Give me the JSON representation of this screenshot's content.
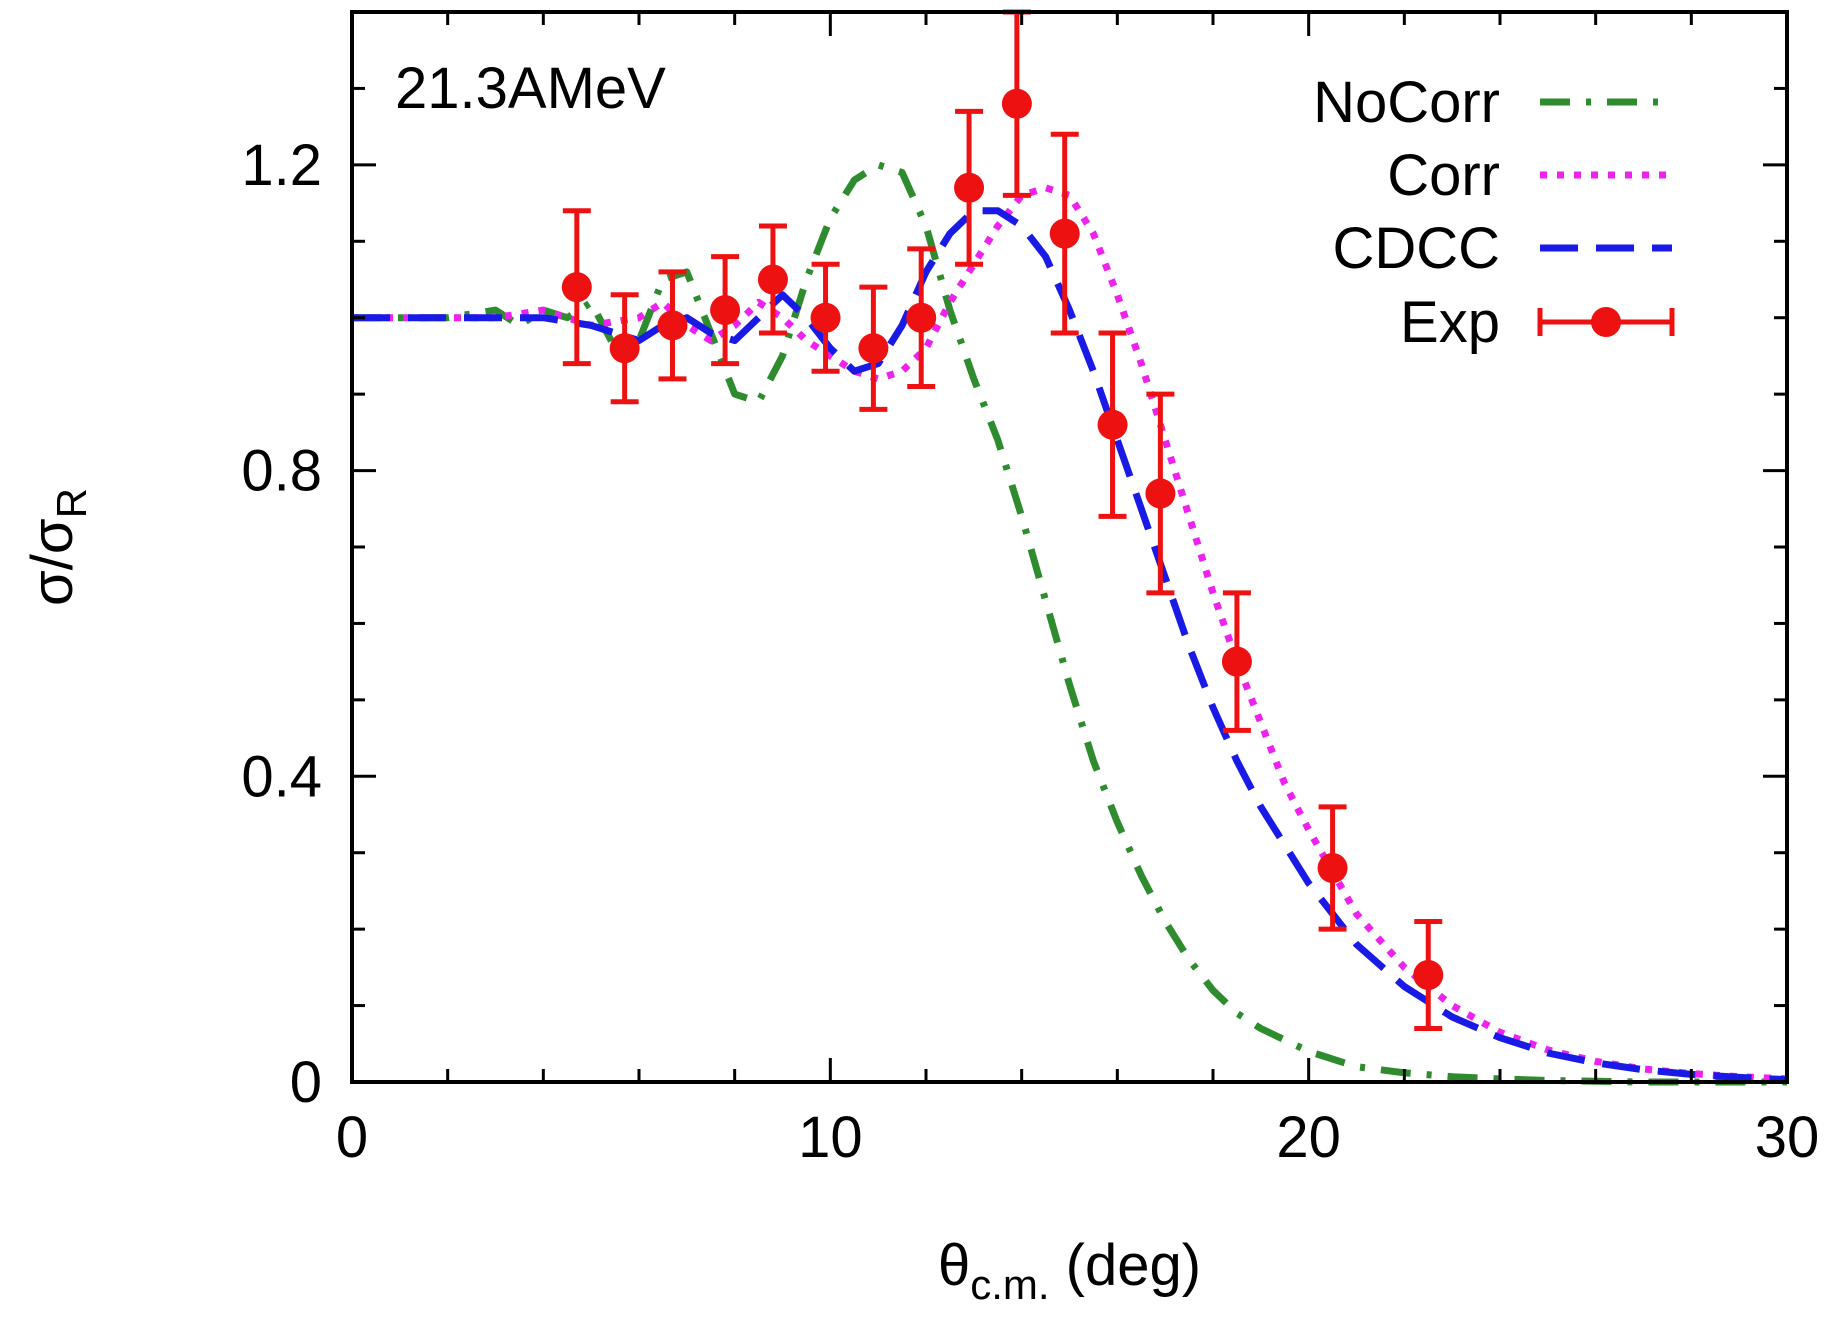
{
  "chart_data": {
    "type": "line",
    "annotation": "21.3AMeV",
    "xlabel": {
      "main": "θ",
      "sub": "c.m.",
      "suffix": " (deg)"
    },
    "ylabel": {
      "main": "σ/σ",
      "sub": "R"
    },
    "xlim": [
      0,
      30
    ],
    "ylim": [
      0,
      1.4
    ],
    "xticks": [
      0,
      10,
      20,
      30
    ],
    "xtick_labels": [
      "0",
      "10",
      "20",
      "30"
    ],
    "yticks": [
      0,
      0.4,
      0.8,
      1.2
    ],
    "ytick_labels": [
      "0",
      "0.4",
      "0.8",
      "1.2"
    ],
    "grid": false,
    "legend_position": "top-right",
    "series": [
      {
        "name": "NoCorr",
        "style": "dash-dot",
        "colors": [
          "#2e8b2e",
          "#7a7a7a"
        ],
        "x": [
          0,
          1,
          2,
          3,
          3.5,
          4,
          4.5,
          5,
          5.5,
          6,
          6.5,
          7,
          7.5,
          8,
          8.5,
          9,
          9.5,
          10,
          10.5,
          11,
          11.5,
          12,
          12.5,
          13,
          13.5,
          14,
          14.5,
          15,
          15.5,
          16,
          16.5,
          17,
          17.5,
          18,
          18.5,
          19,
          20,
          21,
          22,
          23,
          24,
          25,
          26,
          27,
          28,
          29,
          30
        ],
        "y": [
          1.0,
          1.0,
          1.0,
          1.01,
          0.99,
          1.01,
          1.0,
          1.02,
          0.96,
          0.97,
          1.05,
          1.06,
          0.98,
          0.9,
          0.89,
          0.95,
          1.05,
          1.13,
          1.18,
          1.2,
          1.19,
          1.12,
          1.01,
          0.92,
          0.84,
          0.74,
          0.63,
          0.52,
          0.42,
          0.34,
          0.27,
          0.21,
          0.16,
          0.12,
          0.09,
          0.07,
          0.04,
          0.02,
          0.012,
          0.007,
          0.004,
          0.002,
          0.001,
          0.0,
          0.0,
          0.0,
          0.0
        ]
      },
      {
        "name": "Corr",
        "style": "dotted",
        "colors": [
          "#ee22ee"
        ],
        "x": [
          0,
          1,
          2,
          3,
          4,
          5,
          6,
          6.5,
          7,
          7.5,
          8,
          8.5,
          9,
          9.5,
          10,
          10.5,
          11,
          11.5,
          12,
          12.5,
          13,
          13.5,
          14,
          14.5,
          15,
          15.5,
          16,
          16.5,
          17,
          17.5,
          18,
          18.5,
          19,
          19.5,
          20,
          21,
          22,
          23,
          24,
          25,
          26,
          27,
          28,
          29,
          30
        ],
        "y": [
          1.0,
          1.0,
          1.0,
          1.0,
          1.01,
          0.99,
          1.0,
          1.02,
          0.99,
          0.97,
          0.99,
          1.02,
          1.0,
          0.97,
          0.95,
          0.93,
          0.92,
          0.93,
          0.96,
          1.02,
          1.07,
          1.12,
          1.16,
          1.17,
          1.16,
          1.11,
          1.03,
          0.94,
          0.84,
          0.74,
          0.64,
          0.55,
          0.47,
          0.39,
          0.33,
          0.22,
          0.15,
          0.1,
          0.065,
          0.042,
          0.027,
          0.017,
          0.011,
          0.007,
          0.004
        ]
      },
      {
        "name": "CDCC",
        "style": "dashed",
        "colors": [
          "#1a1ae6"
        ],
        "x": [
          0,
          1,
          2,
          3,
          4,
          5,
          5.5,
          6,
          6.5,
          7,
          7.5,
          8,
          8.5,
          9,
          9.5,
          10,
          10.5,
          11,
          11.5,
          12,
          12.5,
          13,
          13.5,
          14,
          14.5,
          15,
          15.5,
          16,
          16.5,
          17,
          17.5,
          18,
          18.5,
          19,
          19.5,
          20,
          21,
          22,
          23,
          24,
          25,
          26,
          27,
          28,
          29,
          30
        ],
        "y": [
          1.0,
          1.0,
          1.0,
          1.0,
          1.0,
          0.99,
          0.98,
          0.97,
          0.99,
          1.0,
          0.98,
          0.97,
          1.0,
          1.03,
          1.0,
          0.96,
          0.93,
          0.94,
          0.99,
          1.06,
          1.11,
          1.14,
          1.14,
          1.12,
          1.08,
          1.01,
          0.93,
          0.84,
          0.75,
          0.66,
          0.57,
          0.49,
          0.42,
          0.36,
          0.31,
          0.26,
          0.18,
          0.125,
          0.085,
          0.058,
          0.038,
          0.025,
          0.016,
          0.01,
          0.006,
          0.003
        ]
      },
      {
        "name": "Exp",
        "style": "points",
        "colors": [
          "#ee1111"
        ],
        "x": [
          4.7,
          5.7,
          6.7,
          7.8,
          8.8,
          9.9,
          10.9,
          11.9,
          12.9,
          13.9,
          14.9,
          15.9,
          16.9,
          18.5,
          20.5,
          22.5
        ],
        "y": [
          1.04,
          0.96,
          0.99,
          1.01,
          1.05,
          1.0,
          0.96,
          1.0,
          1.17,
          1.28,
          1.11,
          0.86,
          0.77,
          0.55,
          0.28,
          0.14
        ],
        "err": [
          0.1,
          0.07,
          0.07,
          0.07,
          0.07,
          0.07,
          0.08,
          0.09,
          0.1,
          0.12,
          0.13,
          0.12,
          0.13,
          0.09,
          0.08,
          0.07
        ]
      }
    ]
  }
}
